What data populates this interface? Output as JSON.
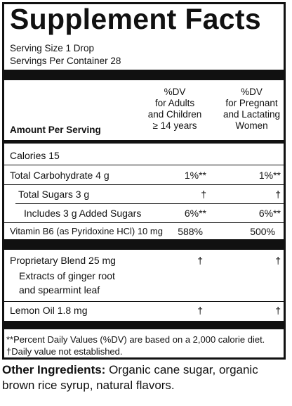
{
  "title": "Supplement Facts",
  "serving_size": "Serving Size 1 Drop",
  "servings_per_container": "Servings Per Container 28",
  "columns": {
    "amount_header": "Amount Per Serving",
    "dv_adults_line1": "%DV",
    "dv_adults_line2": "for Adults",
    "dv_adults_line3": "and Children",
    "dv_adults_line4": "≥ 14 years",
    "dv_preg_line1": "%DV",
    "dv_preg_line2": "for Pregnant",
    "dv_preg_line3": "and Lactating",
    "dv_preg_line4": "Women"
  },
  "rows": [
    {
      "label": "Calories 15",
      "adults": "",
      "pregnant": ""
    },
    {
      "label": "Total Carbohydrate 4 g",
      "adults": "1%**",
      "pregnant": "1%**"
    },
    {
      "label": "Total Sugars 3 g",
      "adults": "†",
      "pregnant": "†"
    },
    {
      "label": "Includes 3 g Added Sugars",
      "adults": "6%**",
      "pregnant": "6%**"
    },
    {
      "label": "Vitamin B6 (as Pyridoxine HCl) 10 mg",
      "adults": "588%",
      "pregnant": "500%"
    }
  ],
  "blend": {
    "label": "Proprietary Blend 25 mg",
    "adults": "†",
    "pregnant": "†",
    "sub_line1": "Extracts of ginger root",
    "sub_line2": "and spearmint leaf"
  },
  "lemon": {
    "label": "Lemon Oil 1.8 mg",
    "adults": "†",
    "pregnant": "†"
  },
  "footnotes": {
    "line1": "**Percent Daily Values (%DV) are based on a 2,000 calorie diet.",
    "line2": "†Daily value not established."
  },
  "other_ingredients": {
    "label": "Other Ingredients:",
    "text": " Organic cane sugar, organic brown rice syrup, natural flavors."
  }
}
